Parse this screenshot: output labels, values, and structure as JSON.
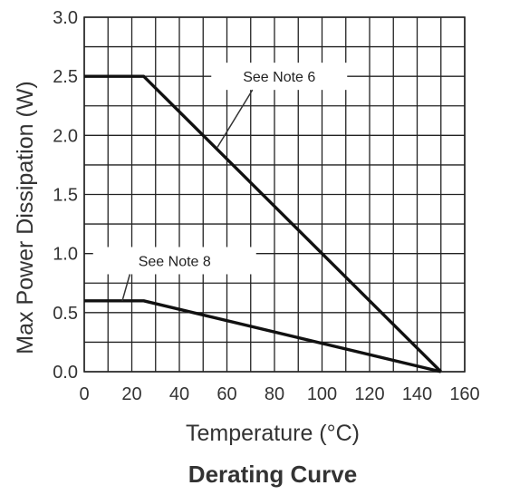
{
  "chart_data": {
    "type": "line",
    "caption": "Derating Curve",
    "xlabel": "Temperature (°C)",
    "ylabel": "Max Power Dissipation (W)",
    "xlim": [
      0,
      160
    ],
    "ylim": [
      0,
      3.0
    ],
    "x_ticks": [
      "0",
      "20",
      "40",
      "60",
      "80",
      "100",
      "120",
      "140",
      "160"
    ],
    "y_ticks": [
      "0.0",
      "0.5",
      "1.0",
      "1.5",
      "2.0",
      "2.5",
      "3.0"
    ],
    "x_minor_step": 10,
    "y_minor_step": 0.25,
    "grid": true,
    "series": [
      {
        "x": [
          0,
          25,
          150
        ],
        "y": [
          2.5,
          2.5,
          0.0
        ]
      },
      {
        "x": [
          0,
          25,
          150
        ],
        "y": [
          0.6,
          0.6,
          0.0
        ]
      }
    ],
    "annotations": [
      {
        "text": "See Note 6",
        "x": 82,
        "y": 2.5,
        "points_to": {
          "x": 56,
          "y": 1.9
        }
      },
      {
        "text": "See Note 8",
        "x": 38,
        "y": 0.94,
        "points_to": {
          "x": 16,
          "y": 0.6
        }
      }
    ],
    "line_color": "#111111",
    "grid_color": "#222222"
  }
}
